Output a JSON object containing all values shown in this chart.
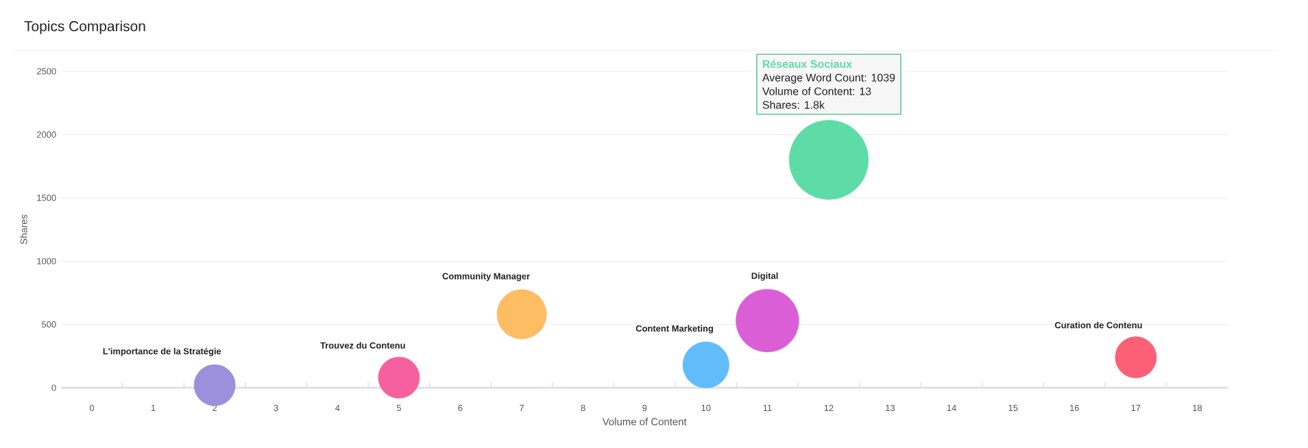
{
  "chart_data": {
    "type": "bubble",
    "title": "Topics Comparison",
    "xlabel": "Volume of Content",
    "ylabel": "Shares",
    "xlim": [
      -0.5,
      18.5
    ],
    "xticks": [
      0,
      1,
      2,
      3,
      4,
      5,
      6,
      7,
      8,
      9,
      10,
      11,
      12,
      13,
      14,
      15,
      16,
      17,
      18
    ],
    "ylim": [
      0,
      2500
    ],
    "yticks": [
      0,
      500,
      1000,
      1500,
      2000,
      2500
    ],
    "grid": "y",
    "annotations": [
      "Average Word Count: 1039",
      "Volume of Content: 13",
      "Shares: 1.8k"
    ],
    "series": [
      {
        "name": "L'importance de la Stratégie",
        "color": "#9c8fdc",
        "x": [
          2
        ],
        "values": [
          20
        ],
        "sizes": [
          0.27
        ]
      },
      {
        "name": "Trouvez du Contenu",
        "color": "#f7609f",
        "x": [
          5
        ],
        "values": [
          80
        ],
        "sizes": [
          0.27
        ]
      },
      {
        "name": "Community Manager",
        "color": "#fdbd63",
        "x": [
          7
        ],
        "values": [
          580
        ],
        "sizes": [
          0.39
        ]
      },
      {
        "name": "Content Marketing",
        "color": "#61bdf9",
        "x": [
          10
        ],
        "values": [
          180
        ],
        "sizes": [
          0.34
        ]
      },
      {
        "name": "Digital",
        "color": "#da5fd6",
        "x": [
          11
        ],
        "values": [
          530
        ],
        "sizes": [
          0.63
        ]
      },
      {
        "name": "Réseaux Sociaux",
        "color": "#5ddca8",
        "x": [
          12
        ],
        "values": [
          1800
        ],
        "sizes": [
          1
        ]
      },
      {
        "name": "Curation de Contenu",
        "color": "#fb6077",
        "x": [
          17
        ],
        "values": [
          240
        ],
        "sizes": [
          0.27
        ]
      }
    ]
  }
}
